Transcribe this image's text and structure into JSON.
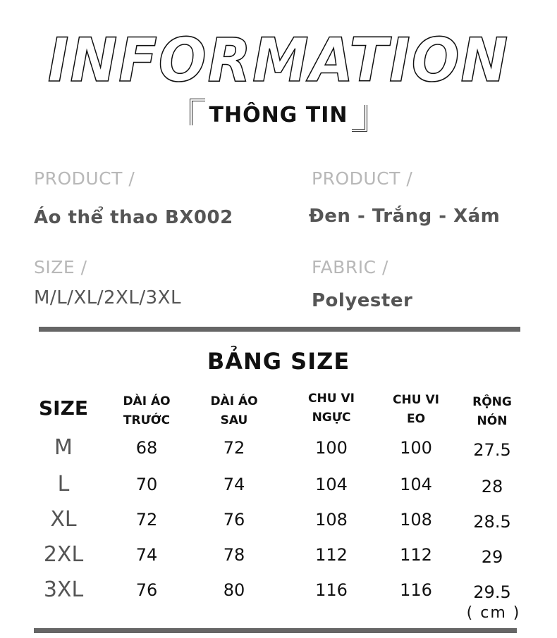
{
  "header": {
    "title": "INFORMATION",
    "subtitle": "THÔNG TIN"
  },
  "info": {
    "product_label": "PRODUCT /",
    "product_value": "Áo thể thao BX002",
    "color_label": "PRODUCT /",
    "color_value": "Đen - Trắng - Xám",
    "size_label": "SIZE /",
    "size_value": "M/L/XL/2XL/3XL",
    "fabric_label": "FABRIC  /",
    "fabric_value": "Polyester"
  },
  "size_table": {
    "title": "BẢNG SIZE",
    "headers": [
      [
        "SIZE"
      ],
      [
        "DÀI ÁO",
        "TRƯỚC"
      ],
      [
        "DÀI ÁO",
        "SAU"
      ],
      [
        "CHU VI",
        "NGỰC"
      ],
      [
        "CHU VI",
        "EO"
      ],
      [
        "RỘNG",
        "NÓN"
      ]
    ],
    "rows": [
      [
        "M",
        "68",
        "72",
        "100",
        "100",
        "27.5"
      ],
      [
        "L",
        "70",
        "74",
        "104",
        "104",
        "28"
      ],
      [
        "XL",
        "72",
        "76",
        "108",
        "108",
        "28.5"
      ],
      [
        "2XL",
        "74",
        "78",
        "112",
        "112",
        "29"
      ],
      [
        "3XL",
        "76",
        "80",
        "116",
        "116",
        "29.5"
      ]
    ],
    "unit": "( cm )"
  },
  "colors": {
    "label": "#b8b8b8",
    "value": "#555555",
    "divider": "#666666"
  }
}
